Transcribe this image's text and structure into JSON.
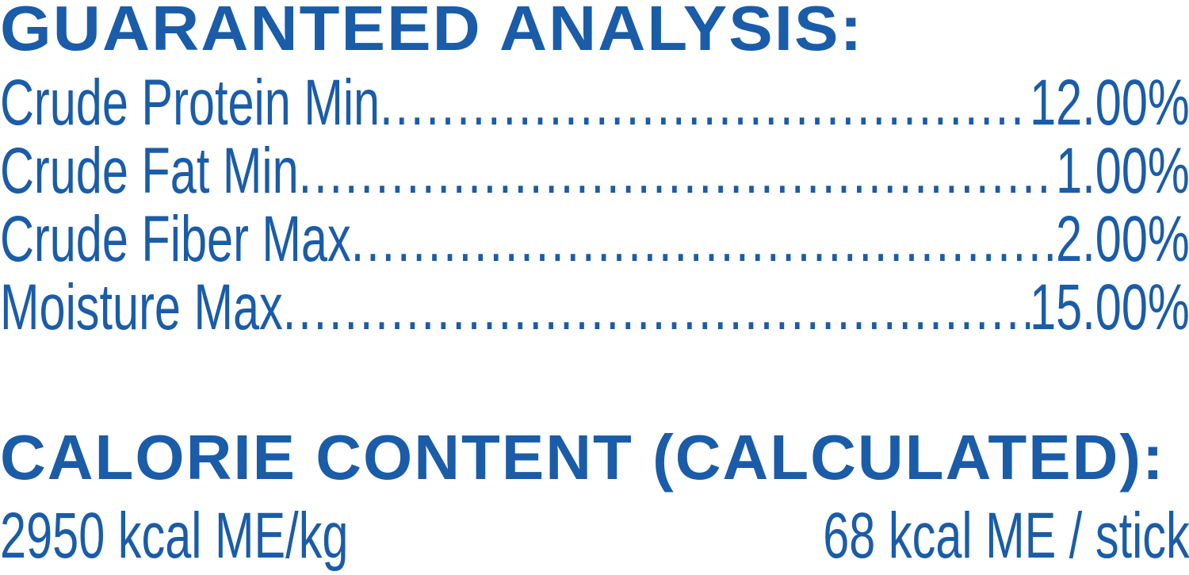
{
  "guaranteed_analysis": {
    "title": "GUARANTEED ANALYSIS:",
    "rows": [
      {
        "label": "Crude Protein Min",
        "value": "12.00%"
      },
      {
        "label": "Crude Fat Min",
        "value": "1.00%"
      },
      {
        "label": "Crude Fiber Max",
        "value": "2.00%"
      },
      {
        "label": "Moisture Max",
        "value": "15.00%"
      }
    ]
  },
  "calorie_content": {
    "title": "CALORIE CONTENT (CALCULATED):",
    "per_kg": "2950 kcal ME/kg",
    "per_stick": "68 kcal ME / stick"
  },
  "colors": {
    "text": "#1a5ca8",
    "background": "#ffffff"
  }
}
